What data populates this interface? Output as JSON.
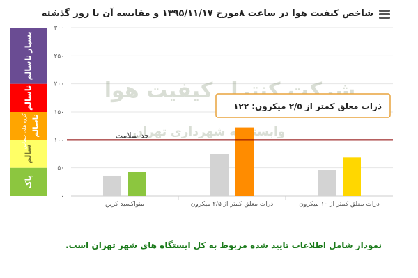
{
  "header": {
    "title": "شاخص کیفیت هوا در ساعت ۸مورخ ۱۳۹۵/۱۱/۱۷ و مقایسه آن با روز گذشته"
  },
  "footer": {
    "note": "نمودار شامل اطلاعات تایید شده مربوط به کل ایستگاه های شهر تهران است."
  },
  "watermark": {
    "line1": "شرکت کنترل کیفیت هوا",
    "line2": "وابسته به شهرداری تهران"
  },
  "chart_data": {
    "type": "bar",
    "categories": [
      "منواکسید کربن",
      "ذرات معلق کمتر از ۲/۵ میکرون",
      "ذرات معلق کمتر از ۱۰ میکرون"
    ],
    "series": [
      {
        "values": [
          36,
          75,
          46
        ],
        "color": "#d3d3d3"
      },
      {
        "values": [
          43,
          122,
          69
        ],
        "colors": [
          "#8cc63f",
          "#ff8c00",
          "#ffd700"
        ]
      }
    ],
    "ylim": [
      0,
      300
    ],
    "yticks": [
      {
        "value": 0,
        "label": "۰"
      },
      {
        "value": 50,
        "label": "۵۰"
      },
      {
        "value": 100,
        "label": "۱۰۰"
      },
      {
        "value": 150,
        "label": "۱۵۰"
      },
      {
        "value": 200,
        "label": "۲۰۰"
      },
      {
        "value": 250,
        "label": "۲۵۰"
      },
      {
        "value": 300,
        "label": "۳۰۰"
      }
    ],
    "threshold": {
      "value": 100,
      "label": "حد سلامت",
      "color": "#8b0000"
    },
    "bands": [
      {
        "from": 0,
        "to": 50,
        "label": "پاک",
        "color": "#8cc63f"
      },
      {
        "from": 50,
        "to": 100,
        "label": "سالم",
        "color": "#ffff66"
      },
      {
        "from": 100,
        "to": 150,
        "label": "برای گروه های حساس",
        "label2": "ناسالم",
        "color": "#ffa500"
      },
      {
        "from": 150,
        "to": 200,
        "label": "ناسالم",
        "color": "#ff0000"
      },
      {
        "from": 200,
        "to": 300,
        "label": "بسیار ناسالم",
        "color": "#6a4c93"
      }
    ],
    "tooltip": {
      "text": "ذرات معلق کمتر از ۲/۵ میکرون: ۱۲۲"
    },
    "grid": true
  }
}
